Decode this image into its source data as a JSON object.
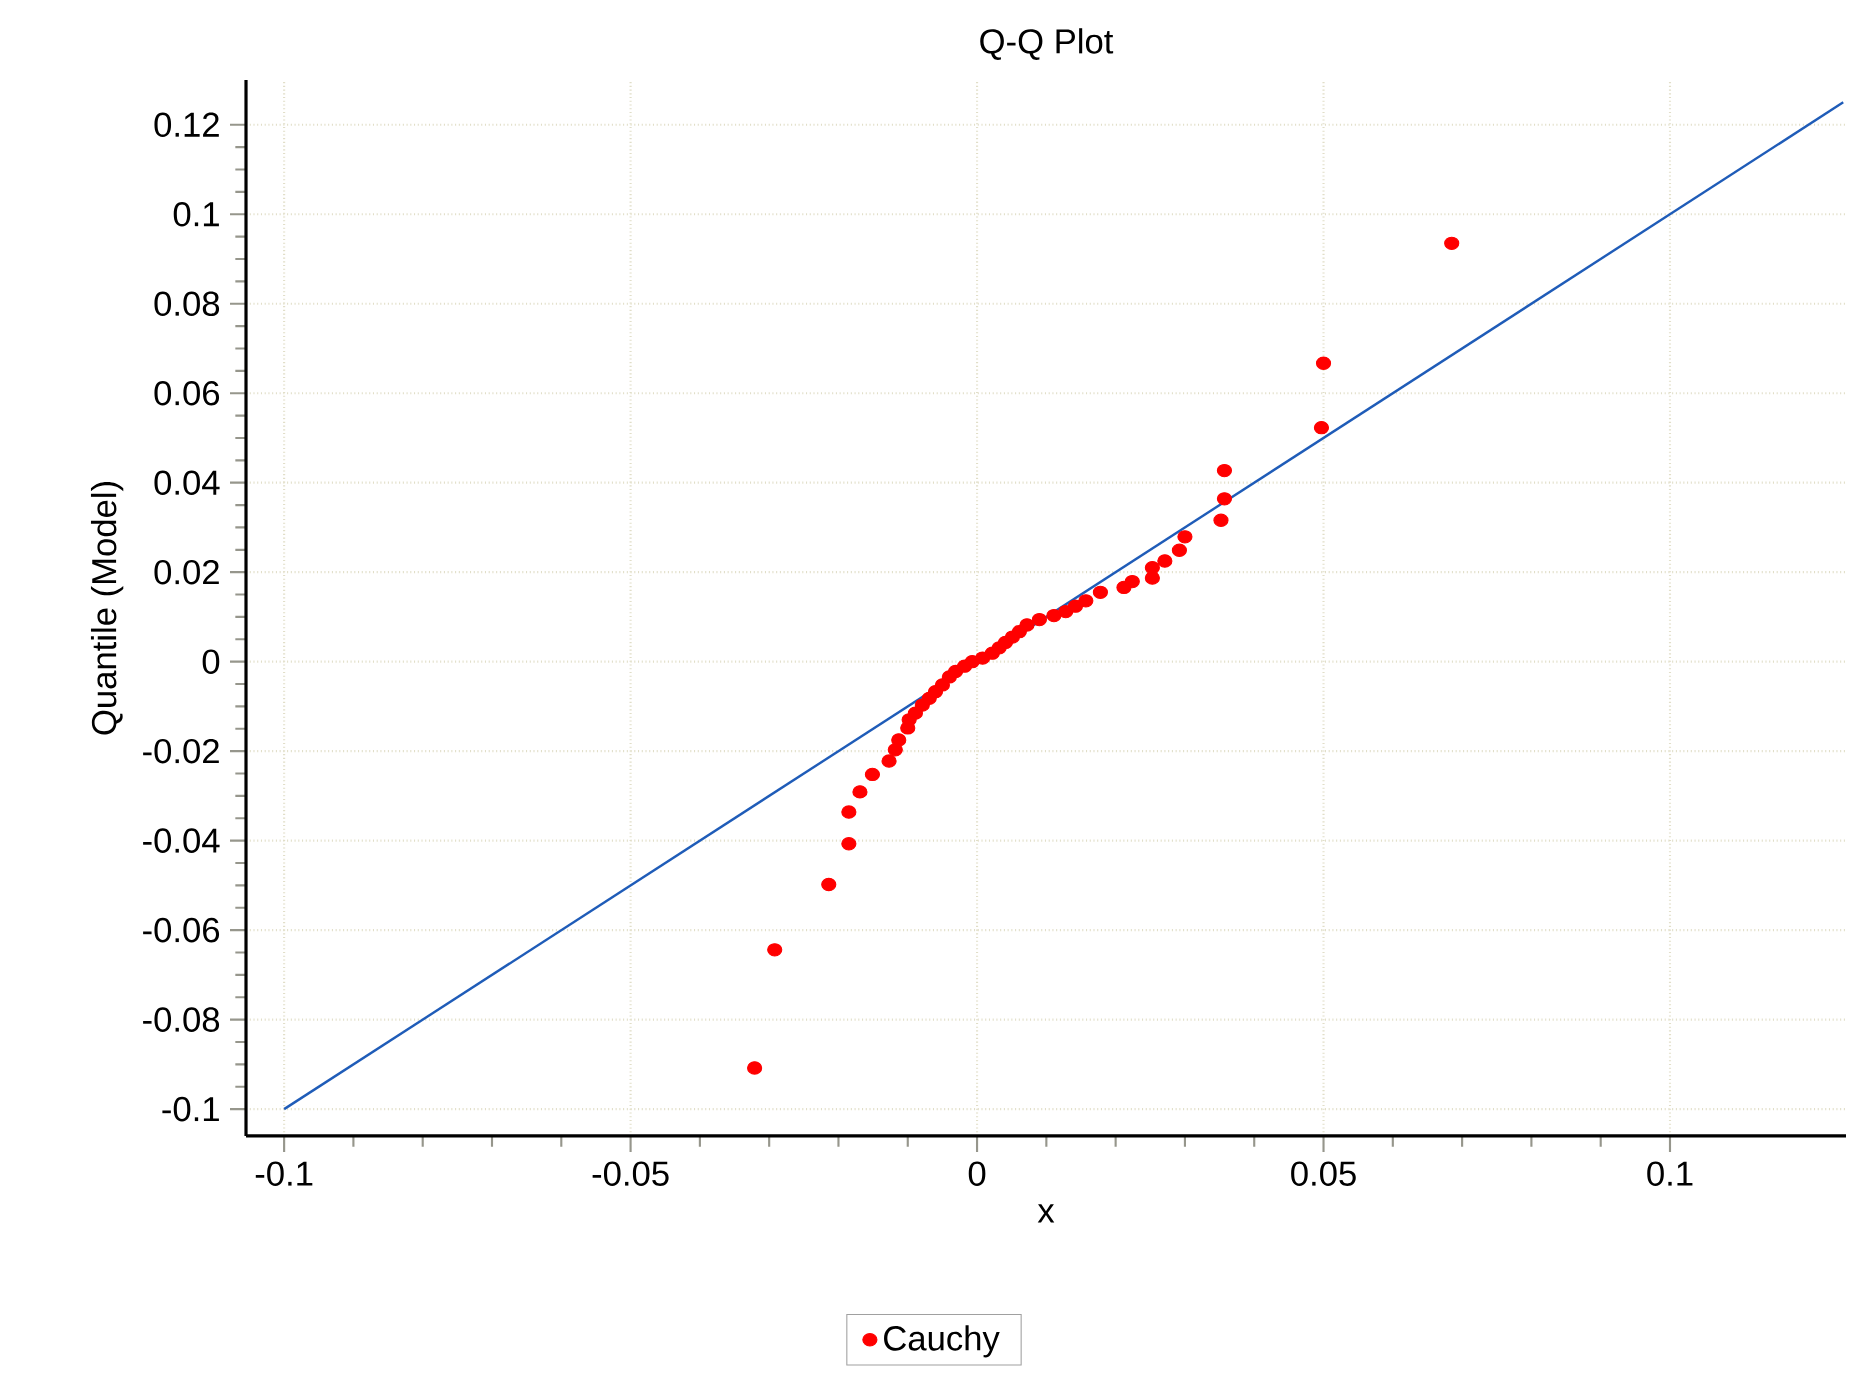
{
  "chart_data": {
    "type": "scatter",
    "title": "Q-Q Plot",
    "xlabel": "x",
    "ylabel": "Quantile (Model)",
    "xlim": [
      -0.1055,
      0.1254
    ],
    "ylim": [
      -0.106,
      0.13
    ],
    "xticks": [
      -0.1,
      -0.05,
      0,
      0.05,
      0.1
    ],
    "yticks": [
      -0.1,
      -0.08,
      -0.06,
      -0.04,
      -0.02,
      0,
      0.02,
      0.04,
      0.06,
      0.08,
      0.1,
      0.12
    ],
    "grid": true,
    "legend": "bottom",
    "marker": "circle",
    "series": [
      {
        "name": "Cauchy",
        "color": "#ff0000",
        "x": [
          -0.0321,
          -0.0292,
          -0.0214,
          -0.0185,
          -0.0185,
          -0.0169,
          -0.0151,
          -0.0127,
          -0.0118,
          -0.0113,
          -0.01,
          -0.0098,
          -0.0089,
          -0.0079,
          -0.0069,
          -0.006,
          -0.005,
          -0.004,
          -0.0031,
          -0.0018,
          -0.0007,
          0.0008,
          0.0022,
          0.0032,
          0.0041,
          0.0051,
          0.0061,
          0.0072,
          0.009,
          0.0111,
          0.0128,
          0.0142,
          0.0157,
          0.0178,
          0.0212,
          0.0224,
          0.0253,
          0.0253,
          0.0271,
          0.0292,
          0.03,
          0.0352,
          0.0357,
          0.0357,
          0.0497,
          0.05,
          0.0685
        ],
        "values": [
          -0.0908,
          -0.0644,
          -0.0498,
          -0.0407,
          -0.0336,
          -0.0291,
          -0.0252,
          -0.0222,
          -0.0197,
          -0.0175,
          -0.0148,
          -0.013,
          -0.0115,
          -0.0097,
          -0.0082,
          -0.0067,
          -0.0052,
          -0.0034,
          -0.0022,
          -0.001,
          0.0,
          0.0008,
          0.0019,
          0.0031,
          0.0043,
          0.0055,
          0.0067,
          0.0082,
          0.0094,
          0.0103,
          0.0112,
          0.0124,
          0.0136,
          0.0155,
          0.0166,
          0.0179,
          0.0187,
          0.021,
          0.0225,
          0.0249,
          0.0279,
          0.0316,
          0.0364,
          0.0427,
          0.0523,
          0.0667,
          0.0935
        ]
      },
      {
        "type": "line",
        "color": "#1f5cb8",
        "marker": "none",
        "x": [
          -0.1,
          0.125
        ],
        "values": [
          -0.1,
          0.125
        ]
      }
    ]
  }
}
